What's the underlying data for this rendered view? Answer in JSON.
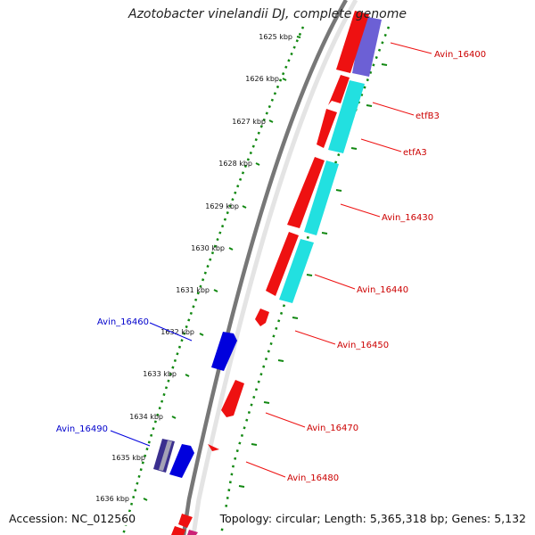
{
  "header": {
    "title": "Azotobacter vinelandii DJ, complete genome"
  },
  "footer": {
    "accession": "Accession: NC_012560",
    "topology": "Topology: circular; Length: 5,365,318 bp; Genes: 5,132"
  },
  "colors": {
    "forward_cds": "#ee1111",
    "reverse_cds": "#0000dd",
    "forward_rna": "#22e0e0",
    "reverse_rna": "#5c4fd0",
    "backbone": "#777777",
    "tick": "#118811"
  },
  "ruler": {
    "unit": "kbp",
    "ticks": [
      "1625 kbp",
      "1626 kbp",
      "1627 kbp",
      "1628 kbp",
      "1629 kbp",
      "1630 kbp",
      "1631 kbp",
      "1632 kbp",
      "1633 kbp",
      "1634 kbp",
      "1635 kbp",
      "1636 kbp"
    ]
  },
  "gene_labels": [
    {
      "name": "Avin_16400",
      "color": "#cc0000"
    },
    {
      "name": "etfB3",
      "color": "#cc0000"
    },
    {
      "name": "etfA3",
      "color": "#cc0000"
    },
    {
      "name": "Avin_16430",
      "color": "#cc0000"
    },
    {
      "name": "Avin_16440",
      "color": "#cc0000"
    },
    {
      "name": "Avin_16450",
      "color": "#cc0000"
    },
    {
      "name": "Avin_16460",
      "color": "#0000cc"
    },
    {
      "name": "Avin_16470",
      "color": "#cc0000"
    },
    {
      "name": "Avin_16480",
      "color": "#cc0000"
    },
    {
      "name": "Avin_16490",
      "color": "#0000cc"
    }
  ]
}
